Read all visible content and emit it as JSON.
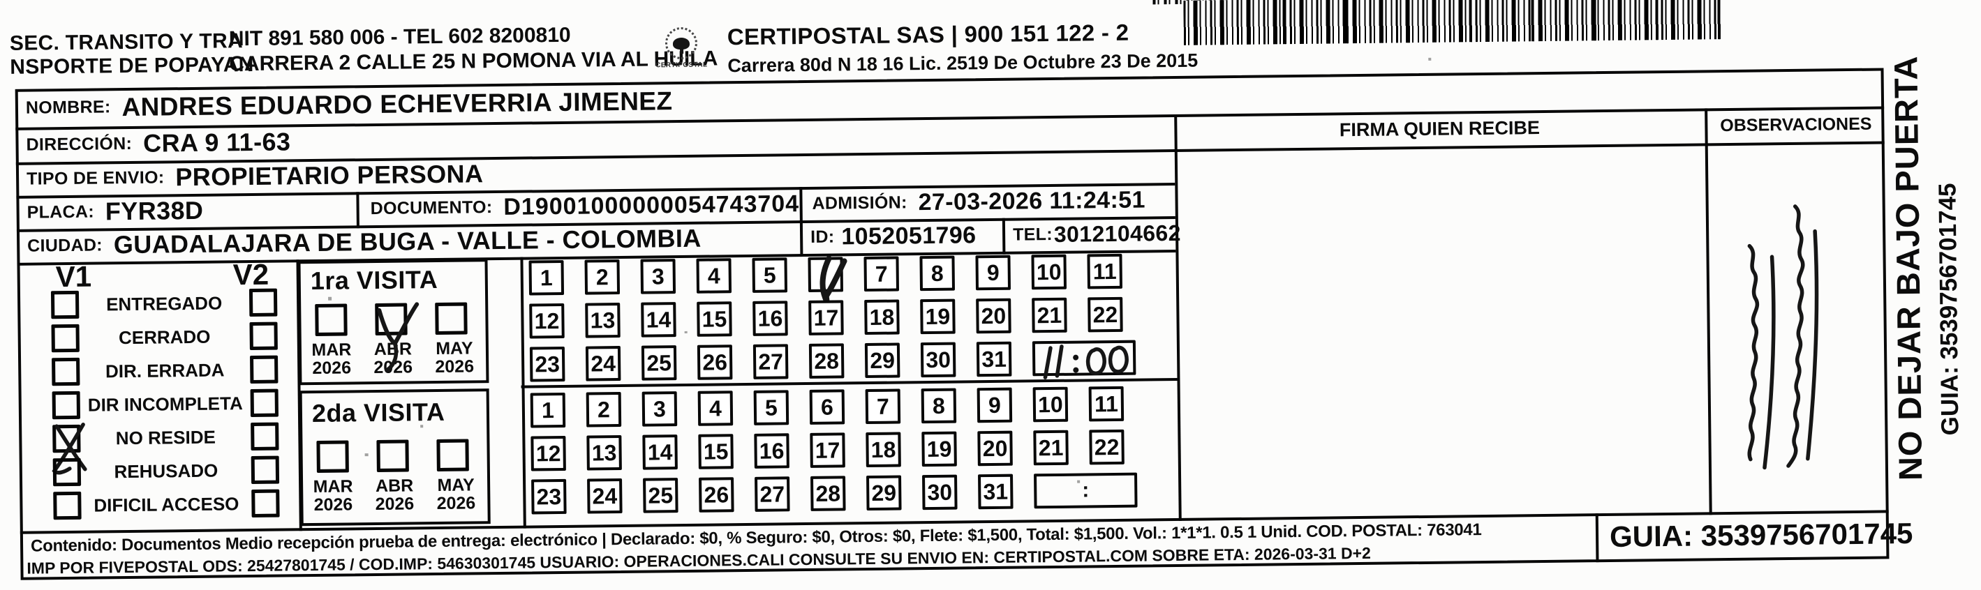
{
  "header": {
    "sender_line1": "SEC. TRANSITO Y TRA",
    "sender_line2": "NSPORTE DE POPAYAN",
    "nit_line": "NIT 891 580 006 - TEL 602 8200810",
    "address_line": "CARRERA 2 CALLE 25 N POMONA VIA AL HUILA",
    "logo_caption": "CERTIPOSTAL",
    "carrier_line1": "CERTIPOSTAL SAS | 900 151 122 - 2",
    "carrier_line2": "Carrera 80d N 18 16  Lic. 2519 De Octubre 23 De 2015"
  },
  "shipment": {
    "nombre_label": "NOMBRE:",
    "nombre": "ANDRES EDUARDO ECHEVERRIA JIMENEZ",
    "direccion_label": "DIRECCIÓN:",
    "direccion": "CRA 9 11-63",
    "tipo_envio_label": "TIPO DE ENVIO:",
    "tipo_envio": "PROPIETARIO PERSONA",
    "placa_label": "PLACA:",
    "placa": "FYR38D",
    "documento_label": "DOCUMENTO:",
    "documento": "D19001000000054743704",
    "admision_label": "ADMISIÓN:",
    "admision": "27-03-2026 11:24:51",
    "ciudad_label": "CIUDAD:",
    "ciudad": "GUADALAJARA DE BUGA - VALLE - COLOMBIA",
    "id_label": "ID:",
    "id_value": "1052051796",
    "tel_label": "TEL:",
    "tel_value": "3012104662"
  },
  "signature": {
    "firma_header": "FIRMA QUIEN RECIBE"
  },
  "observations": {
    "header": "OBSERVACIONES",
    "handwritten_note": "(illegible handwritten annotation, written vertically)"
  },
  "status_panel": {
    "column1_header": "V1",
    "column2_header": "V2",
    "options": [
      "ENTREGADO",
      "CERRADO",
      "DIR. ERRADA",
      "DIR INCOMPLETA",
      "NO RESIDE",
      "REHUSADO",
      "DIFICIL ACCESO"
    ],
    "v1_checked_option": "NO RESIDE",
    "v2_checked_options": []
  },
  "visits": {
    "day_rows": [
      [
        1,
        2,
        3,
        4,
        5,
        6,
        7,
        8,
        9,
        10,
        11
      ],
      [
        12,
        13,
        14,
        15,
        16,
        17,
        18,
        19,
        20,
        21,
        22
      ],
      [
        23,
        24,
        25,
        26,
        27,
        28,
        29,
        30,
        31
      ]
    ],
    "time_separator": ":",
    "first": {
      "title": "1ra VISITA",
      "months": [
        {
          "month": "MAR",
          "year": "2026"
        },
        {
          "month": "ABR",
          "year": "2026"
        },
        {
          "month": "MAY",
          "year": "2026"
        }
      ],
      "checked_month": "ABR",
      "marked_day": 6,
      "handwritten_time": "11:00"
    },
    "second": {
      "title": "2da VISITA",
      "months": [
        {
          "month": "MAR",
          "year": "2026"
        },
        {
          "month": "ABR",
          "year": "2026"
        },
        {
          "month": "MAY",
          "year": "2026"
        }
      ],
      "checked_month": null,
      "marked_day": null,
      "handwritten_time": ""
    }
  },
  "footer": {
    "line1": "Contenido: Documentos Medio recepción prueba de entrega: electrónico | Declarado: $0, % Seguro: $0, Otros: $0, Flete: $1,500, Total: $1,500. Vol.: 1*1*1. 0.5  1 Unid. COD. POSTAL: 763041",
    "line2": "IMP POR FIVEPOSTAL ODS: 25427801745 / COD.IMP: 54630301745 USUARIO: OPERACIONES.CALI CONSULTE SU ENVIO EN: CERTIPOSTAL.COM SOBRE ETA: 2026-03-31 D+2",
    "guia_box": "GUIA: 3539756701745"
  },
  "side_panel": {
    "warning_vertical": "NO DEJAR BAJO PUERTA",
    "guia_vertical": "GUIA: 3539756701745"
  },
  "icons": {
    "logo": "certipostal-logo",
    "barcode": "shipment-barcode"
  }
}
